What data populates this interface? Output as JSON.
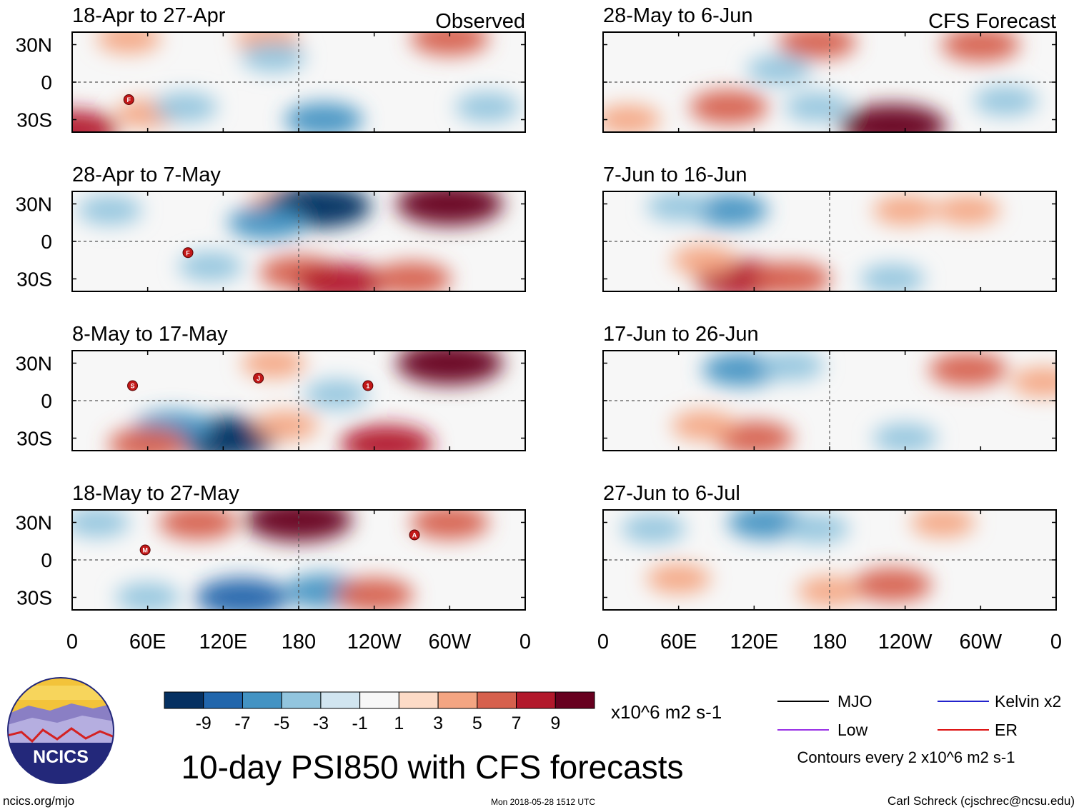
{
  "chart_data": {
    "type": "heatmap",
    "title": "10-day PSI850 with CFS forecasts",
    "variable": "PSI850",
    "units": "x10^6 m2 s-1",
    "contour_note": "Contours every 2 x10^6 m2 s-1",
    "column_titles": {
      "observed": "Observed",
      "forecast": "CFS Forecast"
    },
    "x_tick_labels": [
      "0",
      "60E",
      "120E",
      "180",
      "120W",
      "60W",
      "0"
    ],
    "y_tick_labels": [
      "30N",
      "0",
      "30S"
    ],
    "longitude_range": [
      0,
      360
    ],
    "latitude_range": [
      -40,
      40
    ],
    "colorbar": {
      "levels": [
        -9,
        -7,
        -5,
        -3,
        -1,
        1,
        3,
        5,
        7,
        9
      ],
      "level_labels": [
        "-9",
        "-7",
        "-5",
        "-3",
        "-1",
        "1",
        "3",
        "5",
        "7",
        "9"
      ],
      "colors": [
        "#053061",
        "#2166ac",
        "#4393c3",
        "#92c5de",
        "#d1e5f0",
        "#f7f7f7",
        "#fddbc7",
        "#f4a582",
        "#d6604d",
        "#b2182b",
        "#67001f"
      ]
    },
    "legend": [
      {
        "label": "MJO",
        "color": "#000000"
      },
      {
        "label": "Kelvin x2",
        "color": "#2222cc"
      },
      {
        "label": "Low",
        "color": "#9a32e6"
      },
      {
        "label": "ER",
        "color": "#dd1111"
      }
    ],
    "panels": [
      {
        "period": "18-Apr to 27-Apr",
        "kind": "observed",
        "storms": [
          {
            "lon": 45,
            "lat": -14,
            "letter": "F"
          }
        ],
        "anomalies": [
          {
            "lon": 45,
            "lat": 35,
            "value": 3
          },
          {
            "lon": 155,
            "lat": 35,
            "value": 3
          },
          {
            "lon": 300,
            "lat": 35,
            "value": 5
          },
          {
            "lon": 0,
            "lat": -38,
            "value": 7
          },
          {
            "lon": 60,
            "lat": -25,
            "value": 3
          },
          {
            "lon": 160,
            "lat": 20,
            "value": -3
          },
          {
            "lon": 90,
            "lat": -20,
            "value": -3
          },
          {
            "lon": 200,
            "lat": -30,
            "value": -5
          },
          {
            "lon": 330,
            "lat": -20,
            "value": -3
          }
        ]
      },
      {
        "period": "28-Apr to 7-May",
        "kind": "observed",
        "storms": [
          {
            "lon": 92,
            "lat": -9,
            "letter": "F"
          }
        ],
        "anomalies": [
          {
            "lon": 165,
            "lat": 30,
            "value": 3
          },
          {
            "lon": 195,
            "lat": 28,
            "value": -9
          },
          {
            "lon": 155,
            "lat": 15,
            "value": -5
          },
          {
            "lon": 300,
            "lat": 30,
            "value": 9
          },
          {
            "lon": 180,
            "lat": -25,
            "value": 5
          },
          {
            "lon": 215,
            "lat": -33,
            "value": 7
          },
          {
            "lon": 270,
            "lat": -30,
            "value": 5
          },
          {
            "lon": 30,
            "lat": 25,
            "value": -3
          },
          {
            "lon": 110,
            "lat": -20,
            "value": -3
          }
        ]
      },
      {
        "period": "8-May to 17-May",
        "kind": "observed",
        "storms": [
          {
            "lon": 48,
            "lat": 12,
            "letter": "S"
          },
          {
            "lon": 148,
            "lat": 18,
            "letter": "J"
          },
          {
            "lon": 235,
            "lat": 12,
            "letter": "1"
          }
        ],
        "anomalies": [
          {
            "lon": 300,
            "lat": 30,
            "value": 9
          },
          {
            "lon": 160,
            "lat": 30,
            "value": 3
          },
          {
            "lon": 120,
            "lat": -30,
            "value": -9
          },
          {
            "lon": 80,
            "lat": -22,
            "value": -5
          },
          {
            "lon": 60,
            "lat": -35,
            "value": 5
          },
          {
            "lon": 250,
            "lat": -35,
            "value": 7
          },
          {
            "lon": 170,
            "lat": -20,
            "value": 3
          },
          {
            "lon": 210,
            "lat": 5,
            "value": -3
          }
        ]
      },
      {
        "period": "18-May to 27-May",
        "kind": "observed",
        "storms": [
          {
            "lon": 58,
            "lat": 8,
            "letter": "M"
          },
          {
            "lon": 272,
            "lat": 20,
            "letter": "A"
          }
        ],
        "anomalies": [
          {
            "lon": 180,
            "lat": 32,
            "value": 9
          },
          {
            "lon": 100,
            "lat": 30,
            "value": 5
          },
          {
            "lon": 300,
            "lat": 30,
            "value": 5
          },
          {
            "lon": 135,
            "lat": -30,
            "value": -7
          },
          {
            "lon": 200,
            "lat": -25,
            "value": -5
          },
          {
            "lon": 240,
            "lat": -28,
            "value": 5
          },
          {
            "lon": 60,
            "lat": -30,
            "value": -3
          },
          {
            "lon": 20,
            "lat": 30,
            "value": -3
          }
        ]
      },
      {
        "period": "28-May to 6-Jun",
        "kind": "forecast",
        "storms": [],
        "anomalies": [
          {
            "lon": 170,
            "lat": 32,
            "value": 5
          },
          {
            "lon": 300,
            "lat": 30,
            "value": 5
          },
          {
            "lon": 230,
            "lat": -35,
            "value": 9
          },
          {
            "lon": 100,
            "lat": -20,
            "value": 5
          },
          {
            "lon": 20,
            "lat": -30,
            "value": 3
          },
          {
            "lon": 140,
            "lat": 10,
            "value": -3
          },
          {
            "lon": 170,
            "lat": -20,
            "value": -3
          },
          {
            "lon": 320,
            "lat": -15,
            "value": -3
          }
        ]
      },
      {
        "period": "7-Jun to 16-Jun",
        "kind": "forecast",
        "storms": [],
        "anomalies": [
          {
            "lon": 100,
            "lat": 25,
            "value": -5
          },
          {
            "lon": 60,
            "lat": 28,
            "value": -3
          },
          {
            "lon": 110,
            "lat": -30,
            "value": 7
          },
          {
            "lon": 150,
            "lat": -30,
            "value": 5
          },
          {
            "lon": 80,
            "lat": -15,
            "value": 3
          },
          {
            "lon": 240,
            "lat": 25,
            "value": 3
          },
          {
            "lon": 290,
            "lat": 25,
            "value": 3
          },
          {
            "lon": 230,
            "lat": -30,
            "value": -3
          }
        ]
      },
      {
        "period": "17-Jun to 26-Jun",
        "kind": "forecast",
        "storms": [],
        "anomalies": [
          {
            "lon": 110,
            "lat": 25,
            "value": -5
          },
          {
            "lon": 150,
            "lat": 28,
            "value": -3
          },
          {
            "lon": 290,
            "lat": 25,
            "value": 5
          },
          {
            "lon": 120,
            "lat": -30,
            "value": 5
          },
          {
            "lon": 80,
            "lat": -20,
            "value": 3
          },
          {
            "lon": 240,
            "lat": -30,
            "value": -3
          },
          {
            "lon": 350,
            "lat": 15,
            "value": 3
          }
        ]
      },
      {
        "period": "27-Jun to 6-Jul",
        "kind": "forecast",
        "storms": [],
        "anomalies": [
          {
            "lon": 130,
            "lat": 30,
            "value": -5
          },
          {
            "lon": 170,
            "lat": 25,
            "value": -3
          },
          {
            "lon": 180,
            "lat": -25,
            "value": 3
          },
          {
            "lon": 230,
            "lat": -20,
            "value": 5
          },
          {
            "lon": 60,
            "lat": -15,
            "value": 3
          },
          {
            "lon": 270,
            "lat": 30,
            "value": 3
          },
          {
            "lon": 40,
            "lat": 25,
            "value": -3
          }
        ]
      }
    ]
  },
  "branding": {
    "logo_text": "NCICS",
    "site": "ncics.org/mjo",
    "timestamp": "Mon 2018-05-28 1512 UTC",
    "author": "Carl Schreck (cjschrec@ncsu.edu)"
  }
}
